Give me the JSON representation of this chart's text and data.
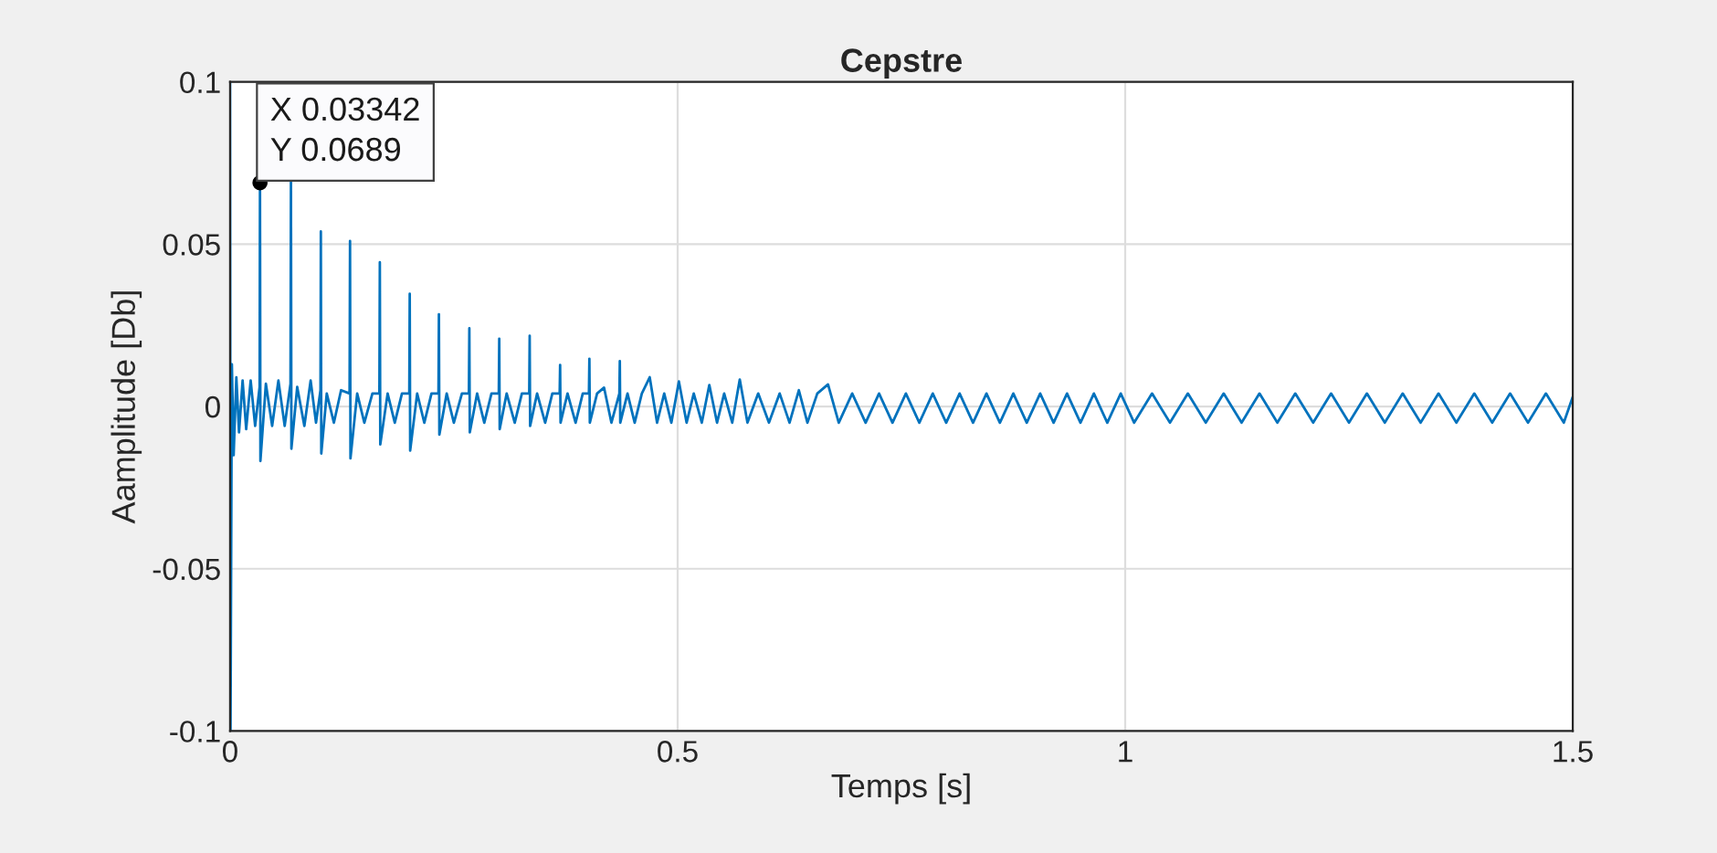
{
  "chart_data": {
    "type": "line",
    "title": "Cepstre",
    "xlabel": "Temps [s]",
    "ylabel": "Aamplitude [Db]",
    "xlim": [
      0,
      1.5
    ],
    "ylim": [
      -0.1,
      0.1
    ],
    "xticks": [
      0,
      0.5,
      1,
      1.5
    ],
    "yticks": [
      -0.1,
      -0.05,
      0,
      0.05,
      0.1
    ],
    "grid": true,
    "annotations": [
      {
        "text": "X 0.03342\nY 0.0689",
        "x": 0.03342,
        "y": 0.0689
      }
    ],
    "series": [
      {
        "color": "#0072bd",
        "x": [
          0,
          0.0005,
          0.002,
          0.004,
          0.007,
          0.01,
          0.014,
          0.018,
          0.023,
          0.028,
          0.033,
          0.03342,
          0.0339,
          0.04,
          0.047,
          0.054,
          0.061,
          0.0675,
          0.068,
          0.0685,
          0.075,
          0.083,
          0.09,
          0.096,
          0.101,
          0.1014,
          0.1019,
          0.108,
          0.116,
          0.124,
          0.1335,
          0.134,
          0.1345,
          0.142,
          0.15,
          0.159,
          0.1668,
          0.1673,
          0.1678,
          0.176,
          0.184,
          0.192,
          0.2002,
          0.2007,
          0.2012,
          0.209,
          0.217,
          0.225,
          0.2328,
          0.2333,
          0.2338,
          0.242,
          0.25,
          0.259,
          0.2668,
          0.2673,
          0.2678,
          0.276,
          0.284,
          0.292,
          0.3002,
          0.3007,
          0.3012,
          0.309,
          0.318,
          0.326,
          0.3342,
          0.3347,
          0.3352,
          0.343,
          0.352,
          0.36,
          0.3682,
          0.3687,
          0.3692,
          0.377,
          0.386,
          0.394,
          0.4009,
          0.4014,
          0.4019,
          0.41,
          0.4178,
          0.426,
          0.4349,
          0.4354,
          0.4359,
          0.444,
          0.452,
          0.46,
          0.4688,
          0.477,
          0.485,
          0.493,
          0.5014,
          0.51,
          0.518,
          0.527,
          0.5354,
          0.544,
          0.552,
          0.561,
          0.5694,
          0.578,
          0.59,
          0.602,
          0.614,
          0.625,
          0.6354,
          0.645,
          0.656,
          0.668,
          0.68,
          0.695,
          0.71,
          0.725,
          0.74,
          0.755,
          0.77,
          0.785,
          0.8,
          0.815,
          0.83,
          0.845,
          0.86,
          0.875,
          0.89,
          0.905,
          0.92,
          0.935,
          0.95,
          0.965,
          0.98,
          0.995,
          1.01,
          1.03,
          1.05,
          1.07,
          1.09,
          1.11,
          1.13,
          1.15,
          1.17,
          1.19,
          1.21,
          1.23,
          1.25,
          1.27,
          1.29,
          1.31,
          1.33,
          1.35,
          1.37,
          1.39,
          1.41,
          1.43,
          1.45,
          1.47,
          1.49,
          1.5
        ],
        "values": [
          0.1,
          -0.1,
          0.013,
          -0.015,
          0.009,
          -0.008,
          0.008,
          -0.007,
          0.008,
          -0.006,
          0.006,
          0.0689,
          -0.0168,
          0.007,
          -0.006,
          0.008,
          -0.006,
          0.007,
          0.07,
          -0.013,
          0.006,
          -0.006,
          0.008,
          -0.005,
          0.005,
          0.0539,
          -0.0145,
          0.004,
          -0.005,
          0.005,
          0.004,
          0.051,
          -0.016,
          0.004,
          -0.005,
          0.004,
          0.004,
          0.0444,
          -0.0117,
          0.004,
          -0.005,
          0.004,
          0.004,
          0.0347,
          -0.0136,
          0.004,
          -0.005,
          0.004,
          0.004,
          0.0284,
          -0.0087,
          0.004,
          -0.005,
          0.004,
          0.004,
          0.0241,
          -0.008,
          0.004,
          -0.005,
          0.004,
          0.004,
          0.0209,
          -0.007,
          0.004,
          -0.005,
          0.004,
          0.004,
          0.0218,
          -0.006,
          0.004,
          -0.005,
          0.004,
          0.004,
          0.0128,
          -0.005,
          0.004,
          -0.005,
          0.004,
          0.004,
          0.0147,
          -0.005,
          0.004,
          0.0058,
          -0.005,
          0.004,
          0.014,
          -0.005,
          0.004,
          -0.005,
          0.004,
          0.009,
          -0.005,
          0.004,
          -0.005,
          0.0077,
          -0.005,
          0.004,
          -0.005,
          0.0066,
          -0.005,
          0.004,
          -0.005,
          0.0083,
          -0.005,
          0.004,
          -0.005,
          0.004,
          -0.005,
          0.005,
          -0.005,
          0.004,
          0.0068,
          -0.005,
          0.004,
          -0.005,
          0.004,
          -0.005,
          0.004,
          -0.005,
          0.004,
          -0.005,
          0.004,
          -0.005,
          0.004,
          -0.005,
          0.004,
          -0.005,
          0.004,
          -0.005,
          0.004,
          -0.005,
          0.004,
          -0.005,
          0.004,
          -0.005,
          0.004,
          -0.005,
          0.004,
          -0.005,
          0.004,
          -0.005,
          0.004,
          -0.005,
          0.004,
          -0.005,
          0.004,
          -0.005,
          0.004,
          -0.005,
          0.004,
          -0.005,
          0.004,
          -0.005,
          0.004,
          -0.005,
          0.004,
          -0.005,
          0.004,
          -0.005,
          0.003
        ]
      }
    ]
  }
}
